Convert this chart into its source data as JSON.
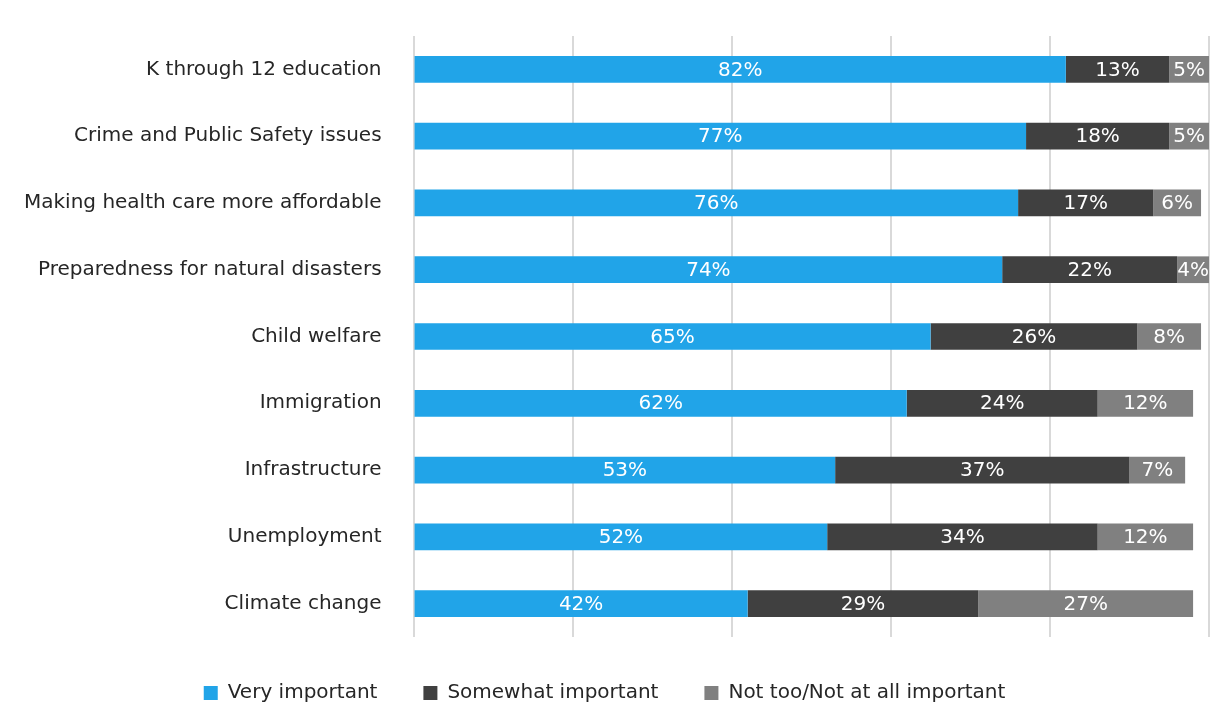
{
  "chart_data": {
    "type": "bar",
    "orientation": "horizontal",
    "stacked": true,
    "categories": [
      "K through 12 education",
      "Crime and Public Safety issues",
      "Making health care more affordable",
      "Preparedness for natural disasters",
      "Child welfare",
      "Immigration",
      "Infrastructure",
      "Unemployment",
      "Climate change"
    ],
    "series": [
      {
        "name": "Very important",
        "color": "#21a4e8",
        "values": [
          82,
          77,
          76,
          74,
          65,
          62,
          53,
          52,
          42
        ],
        "value_labels": [
          "82%",
          "77%",
          "76%",
          "74%",
          "65%",
          "62%",
          "53%",
          "52%",
          "42%"
        ]
      },
      {
        "name": "Somewhat important",
        "color": "#404040",
        "values": [
          13,
          18,
          17,
          22,
          26,
          24,
          37,
          34,
          29
        ],
        "value_labels": [
          "13%",
          "18%",
          "17%",
          "22%",
          "26%",
          "24%",
          "37%",
          "34%",
          "29%"
        ]
      },
      {
        "name": "Not too/Not at all important",
        "color": "#808080",
        "values": [
          5,
          5,
          6,
          4,
          8,
          12,
          7,
          12,
          27
        ],
        "value_labels": [
          "5%",
          "5%",
          "6%",
          "4%",
          "8%",
          "12%",
          "7%",
          "12%",
          "27%"
        ]
      }
    ],
    "grid": "x",
    "legend": "bottom",
    "tick_labels": "y"
  }
}
